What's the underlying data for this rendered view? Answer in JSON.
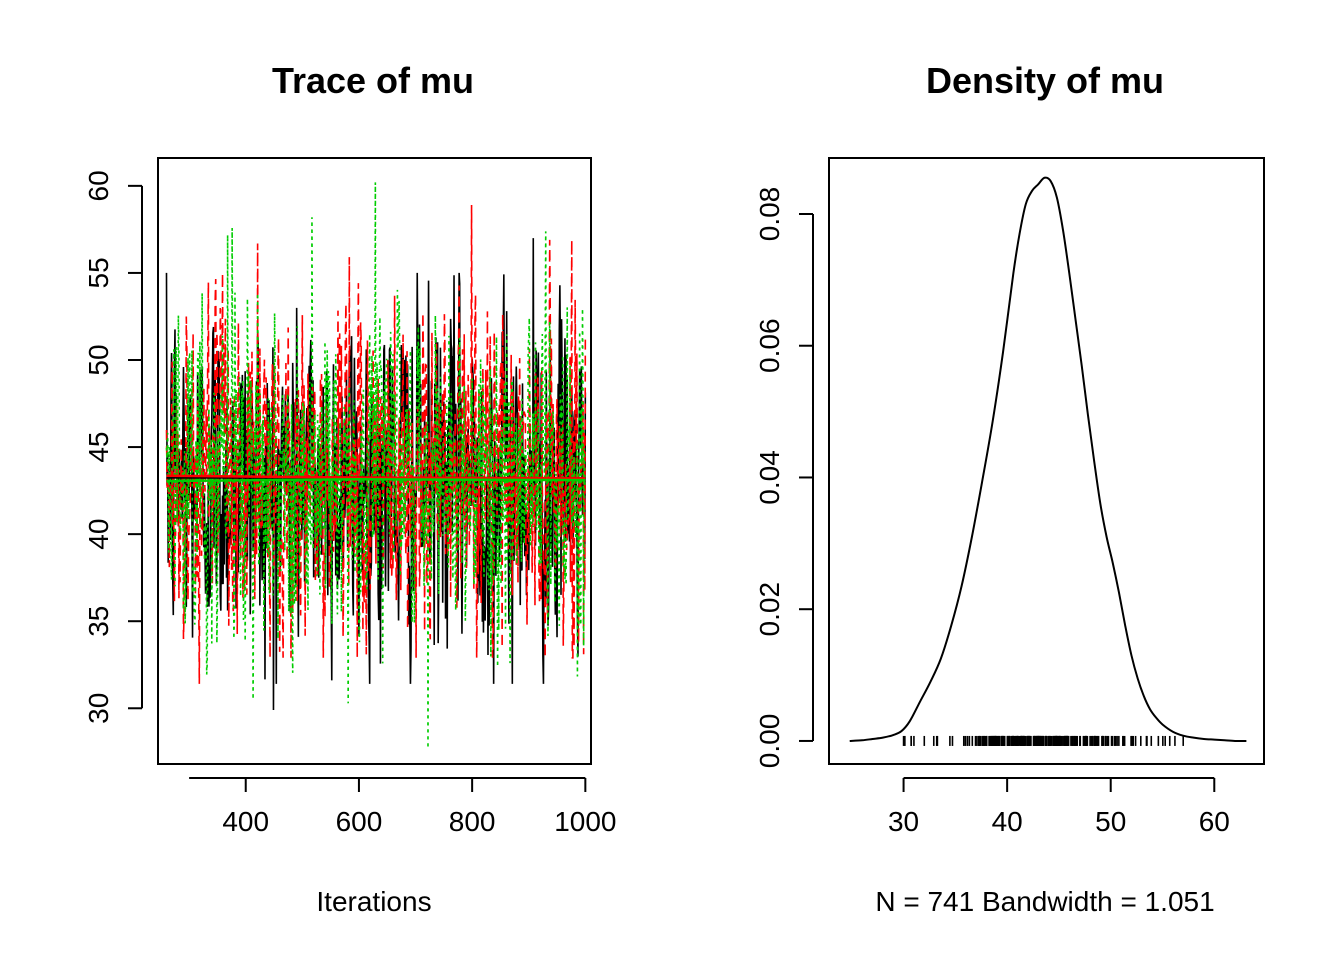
{
  "chart_data": [
    {
      "type": "line",
      "title": "Trace of mu",
      "xlabel": "Iterations",
      "ylabel": "",
      "xlim": [
        245,
        1010
      ],
      "ylim": [
        26.8,
        61.6
      ],
      "xticks": [
        400,
        600,
        800,
        1000
      ],
      "yticks": [
        30,
        35,
        40,
        45,
        50,
        55,
        60
      ],
      "xtick_labels": [
        "400",
        "600",
        "800",
        "1000"
      ],
      "ytick_labels": [
        "30",
        "35",
        "40",
        "45",
        "50",
        "55",
        "60"
      ],
      "grid": false,
      "x_range": [
        260,
        1000
      ],
      "chains": [
        {
          "color": "#000000",
          "dash": "solid",
          "min": 29.9,
          "max": 57.0,
          "mean_line": 43.2
        },
        {
          "color": "#FF0000",
          "dash": "dashed",
          "min": 31.4,
          "max": 58.9,
          "mean_line": 43.2
        },
        {
          "color": "#00CD00",
          "dash": "dotted",
          "min": 27.7,
          "max": 60.2,
          "mean_line": 43.1
        }
      ]
    },
    {
      "type": "line",
      "title": "Density of mu",
      "xlabel": "N = 741   Bandwidth = 1.051",
      "ylabel": "",
      "xlim": [
        22.8,
        64.8
      ],
      "ylim": [
        -0.0035,
        0.0885
      ],
      "xticks": [
        30,
        40,
        50,
        60
      ],
      "yticks": [
        0.0,
        0.02,
        0.04,
        0.06,
        0.08
      ],
      "xtick_labels": [
        "30",
        "40",
        "50",
        "60"
      ],
      "ytick_labels": [
        "0.00",
        "0.02",
        "0.04",
        "0.06",
        "0.08"
      ],
      "grid": false,
      "x": [
        24.8,
        26.0,
        27.0,
        28.0,
        29.0,
        29.8,
        30.6,
        31.6,
        32.6,
        33.6,
        34.6,
        35.6,
        36.6,
        37.6,
        38.6,
        39.6,
        40.6,
        41.2,
        41.8,
        42.4,
        43.0,
        43.6,
        44.2,
        44.8,
        45.4,
        46.0,
        46.6,
        47.2,
        47.8,
        48.4,
        49.0,
        49.6,
        50.2,
        50.8,
        51.4,
        52.0,
        52.6,
        53.2,
        53.8,
        54.4,
        55.0,
        56.0,
        57.0,
        58.0,
        59.0,
        60.0,
        61.0,
        62.0,
        63.1
      ],
      "y": [
        0.0,
        0.0001,
        0.0003,
        0.0005,
        0.0009,
        0.0015,
        0.003,
        0.006,
        0.009,
        0.0125,
        0.0175,
        0.0235,
        0.031,
        0.0395,
        0.0485,
        0.059,
        0.071,
        0.077,
        0.0815,
        0.0835,
        0.0845,
        0.0855,
        0.085,
        0.0825,
        0.0775,
        0.071,
        0.064,
        0.057,
        0.0495,
        0.0425,
        0.036,
        0.031,
        0.027,
        0.0225,
        0.0175,
        0.013,
        0.0095,
        0.0068,
        0.0048,
        0.0035,
        0.0025,
        0.0014,
        0.0008,
        0.0005,
        0.0003,
        0.0002,
        0.0001,
        0.0,
        0.0
      ],
      "rug": {
        "from": 30.0,
        "to": 57.0
      }
    }
  ]
}
